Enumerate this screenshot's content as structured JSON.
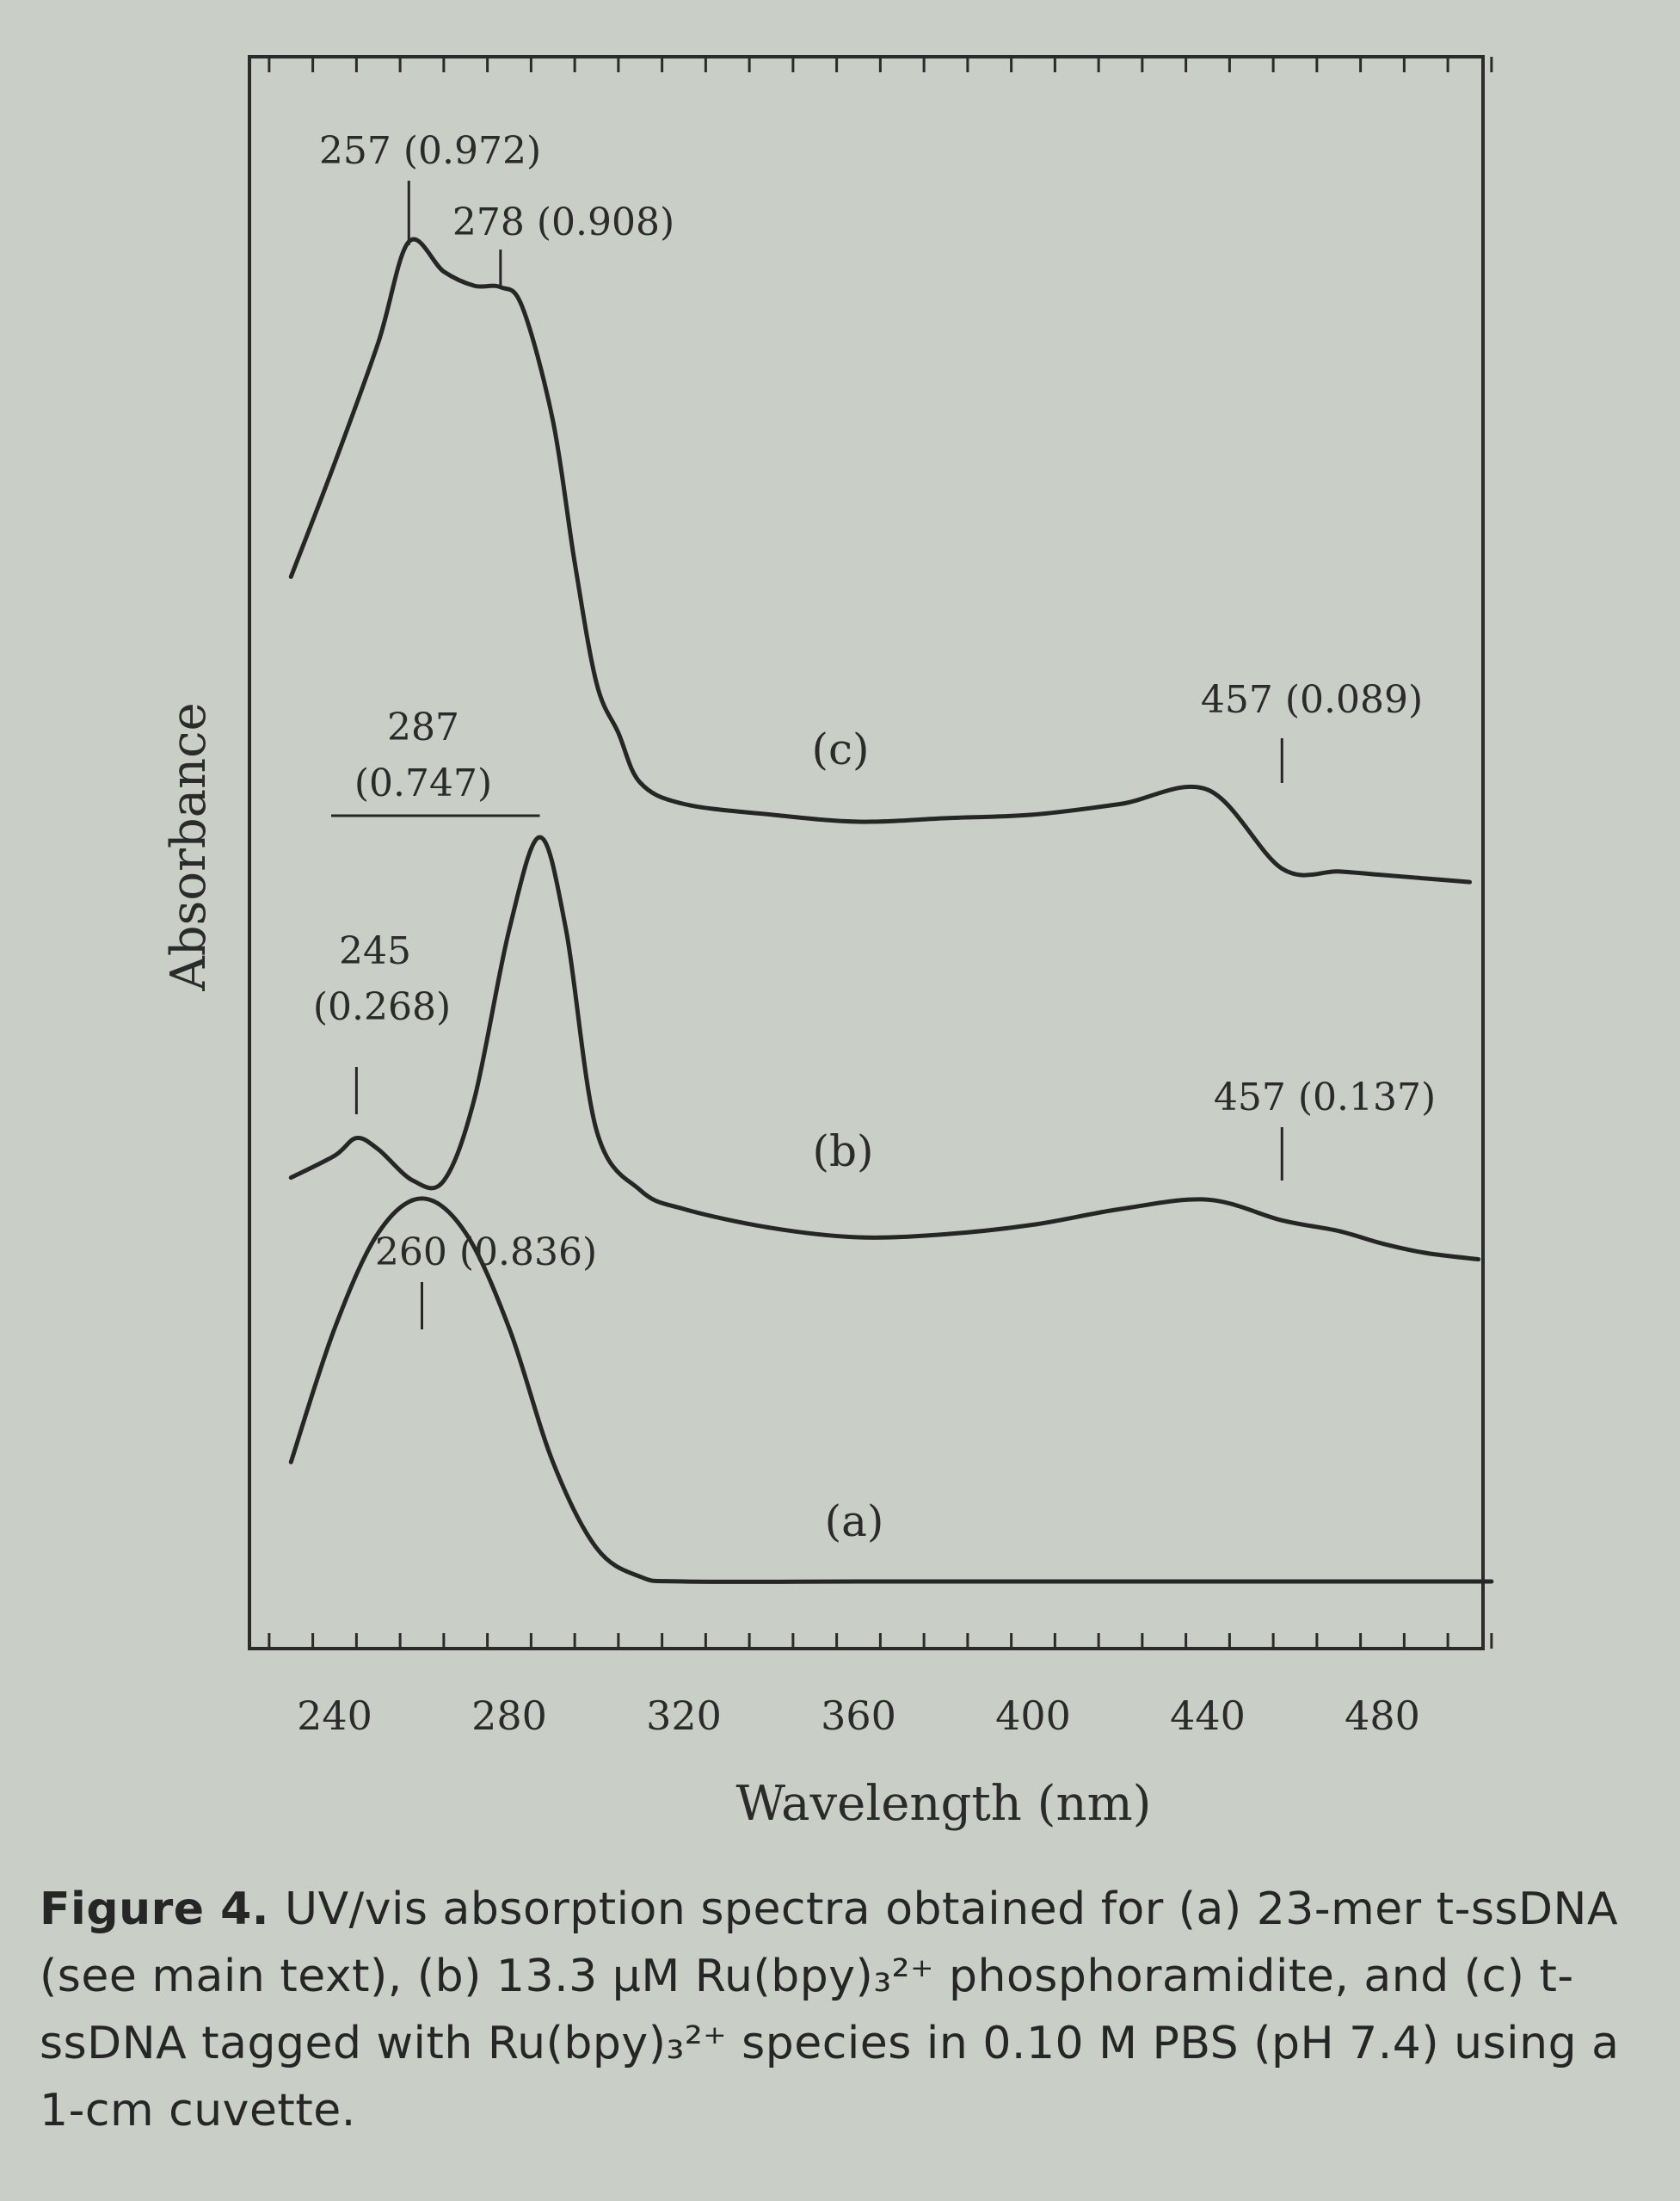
{
  "chart_data": {
    "type": "line",
    "xlabel": "Wavelength (nm)",
    "ylabel": "Absorbance",
    "xlim": [
      220,
      500
    ],
    "x_ticks": [
      240,
      280,
      320,
      360,
      400,
      440,
      480
    ],
    "x_tick_labels": [
      "240",
      "280",
      "320",
      "360",
      "400",
      "440",
      "480"
    ],
    "series": [
      {
        "name": "(a)",
        "x": [
          230,
          240,
          250,
          260,
          270,
          280,
          290,
          300,
          310,
          320,
          360,
          400,
          440,
          480,
          505
        ],
        "y": [
          0.56,
          0.7,
          0.8,
          0.836,
          0.8,
          0.7,
          0.56,
          0.47,
          0.44,
          0.435,
          0.435,
          0.435,
          0.435,
          0.435,
          0.435
        ]
      },
      {
        "name": "(b)",
        "x": [
          230,
          240,
          245,
          250,
          258,
          265,
          272,
          280,
          287,
          293,
          300,
          310,
          320,
          340,
          360,
          380,
          400,
          420,
          440,
          457,
          470,
          480,
          490,
          502
        ],
        "y": [
          0.205,
          0.24,
          0.268,
          0.25,
          0.2,
          0.2,
          0.33,
          0.6,
          0.747,
          0.6,
          0.28,
          0.185,
          0.155,
          0.125,
          0.11,
          0.115,
          0.13,
          0.155,
          0.17,
          0.137,
          0.12,
          0.1,
          0.085,
          0.075
        ]
      },
      {
        "name": "(c)",
        "x": [
          230,
          240,
          250,
          257,
          265,
          272,
          278,
          283,
          290,
          295,
          300,
          305,
          310,
          320,
          340,
          360,
          380,
          400,
          420,
          440,
          457,
          470,
          480,
          490,
          500
        ],
        "y": [
          0.5,
          0.66,
          0.83,
          0.972,
          0.93,
          0.91,
          0.908,
          0.88,
          0.72,
          0.52,
          0.35,
          0.28,
          0.21,
          0.18,
          0.165,
          0.155,
          0.16,
          0.165,
          0.18,
          0.2,
          0.089,
          0.085,
          0.08,
          0.075,
          0.07
        ]
      }
    ],
    "annotations": [
      {
        "series": "(c)",
        "text": "257 (0.972)"
      },
      {
        "series": "(c)",
        "text": "278 (0.908)"
      },
      {
        "series": "(c)",
        "text": "457 (0.089)"
      },
      {
        "series": "(b)",
        "text_lines": [
          "287",
          "(0.747)"
        ]
      },
      {
        "series": "(b)",
        "text_lines": [
          "245",
          "(0.268)"
        ]
      },
      {
        "series": "(b)",
        "text": "457 (0.137)"
      },
      {
        "series": "(a)",
        "text": "260 (0.836)"
      }
    ],
    "curve_labels": [
      "(a)",
      "(b)",
      "(c)"
    ],
    "grid": false,
    "legend": "none"
  },
  "caption": {
    "figure_number": "Figure 4.",
    "text": "UV/vis absorption spectra obtained for (a) 23-mer t-ssDNA (see main text), (b) 13.3 μM Ru(bpy)₃²⁺ phosphoramidite, and (c) t-ssDNA tagged with Ru(bpy)₃²⁺ species in 0.10 M PBS (pH 7.4) using a 1-cm cuvette."
  }
}
